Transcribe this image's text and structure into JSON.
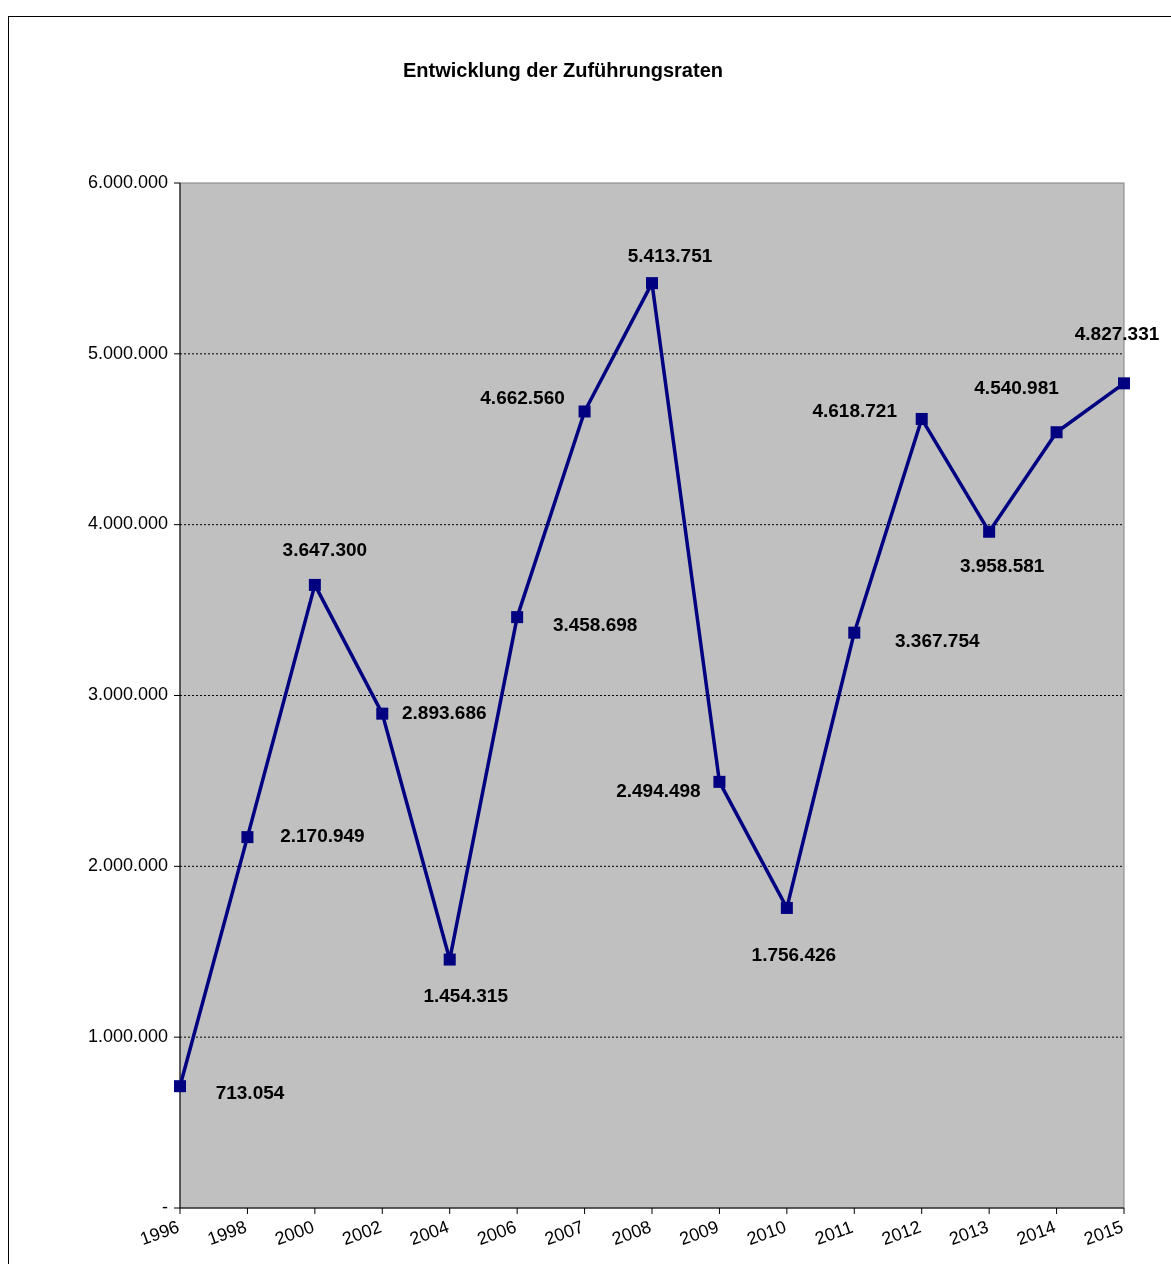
{
  "chart_data": {
    "type": "line",
    "title": "Entwicklung der Zuführungsraten",
    "categories": [
      "1996",
      "1998",
      "2000",
      "2002",
      "2004",
      "2006",
      "2007",
      "2008",
      "2009",
      "2010",
      "2011",
      "2012",
      "2013",
      "2014",
      "2015"
    ],
    "series": [
      {
        "color": "#000080",
        "values": [
          713054,
          2170949,
          3647300,
          2893686,
          1454315,
          3458698,
          4662560,
          5413751,
          2494498,
          1756426,
          3367754,
          4618721,
          3958581,
          4540981,
          4827331
        ],
        "value_labels": [
          "713.054",
          "2.170.949",
          "3.647.300",
          "2.893.686",
          "1.454.315",
          "3.458.698",
          "4.662.560",
          "5.413.751",
          "2.494.498",
          "1.756.426",
          "3.367.754",
          "4.618.721",
          "3.958.581",
          "4.540.981",
          "4.827.331"
        ]
      }
    ],
    "ylim": [
      0,
      6000000
    ],
    "yticks": [
      {
        "value": 0,
        "label": "-"
      },
      {
        "value": 1000000,
        "label": "1.000.000"
      },
      {
        "value": 2000000,
        "label": "2.000.000"
      },
      {
        "value": 3000000,
        "label": "3.000.000"
      },
      {
        "value": 4000000,
        "label": "4.000.000"
      },
      {
        "value": 5000000,
        "label": "5.000.000"
      },
      {
        "value": 6000000,
        "label": "6.000.000"
      }
    ],
    "grid": "y",
    "marker": "square",
    "line_style": "solid"
  }
}
